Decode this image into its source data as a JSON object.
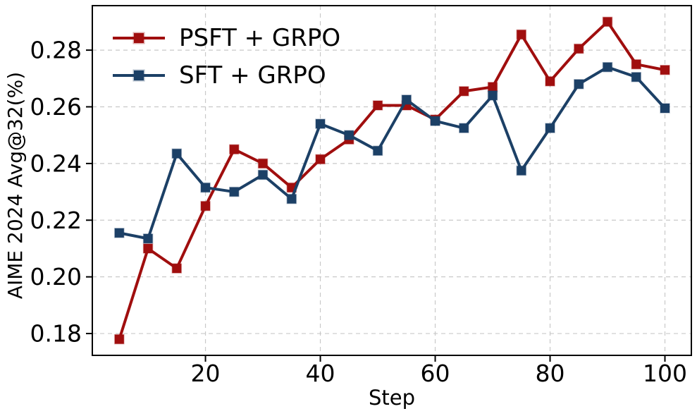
{
  "figure": {
    "background": "#ffffff",
    "text_color": "#000000",
    "grid_color": "#c9c9c9",
    "spine_color": "#000000"
  },
  "chart_data": {
    "type": "line",
    "title": "",
    "xlabel": "Step",
    "ylabel": "AIME 2024 Avg@32(%)",
    "x": [
      5,
      10,
      15,
      20,
      25,
      30,
      35,
      40,
      45,
      50,
      55,
      60,
      65,
      70,
      75,
      80,
      85,
      90,
      95,
      100
    ],
    "series": [
      {
        "name": "PSFT + GRPO",
        "color": "#A00E0E",
        "marker": "square",
        "marker_edge": "rgba(160, 14, 14, 0.35)",
        "values": [
          0.178,
          0.21,
          0.203,
          0.225,
          0.245,
          0.24,
          0.2315,
          0.2415,
          0.2485,
          0.2605,
          0.2605,
          0.2555,
          0.2655,
          0.267,
          0.2855,
          0.269,
          0.2805,
          0.29,
          0.275,
          0.273
        ]
      },
      {
        "name": "SFT + GRPO",
        "color": "#1C4066",
        "marker": "square",
        "marker_edge": "rgba(28, 64, 102, 0.35)",
        "values": [
          0.2155,
          0.2135,
          0.2435,
          0.2315,
          0.23,
          0.236,
          0.2275,
          0.254,
          0.25,
          0.2445,
          0.2625,
          0.255,
          0.2525,
          0.264,
          0.2375,
          0.2525,
          0.268,
          0.274,
          0.2705,
          0.2595
        ]
      }
    ],
    "xlim": [
      0.3,
      104.6
    ],
    "ylim": [
      0.1723,
      0.2957
    ],
    "x_ticks": [
      20,
      40,
      60,
      80,
      100
    ],
    "x_tick_labels": [
      "20",
      "40",
      "60",
      "80",
      "100"
    ],
    "y_ticks": [
      0.18,
      0.2,
      0.22,
      0.24,
      0.26,
      0.28
    ],
    "y_tick_labels": [
      "0.18",
      "0.20",
      "0.22",
      "0.24",
      "0.26",
      "0.28"
    ],
    "grid": true,
    "grid_style": "dashed",
    "legend_position": "upper-left"
  }
}
